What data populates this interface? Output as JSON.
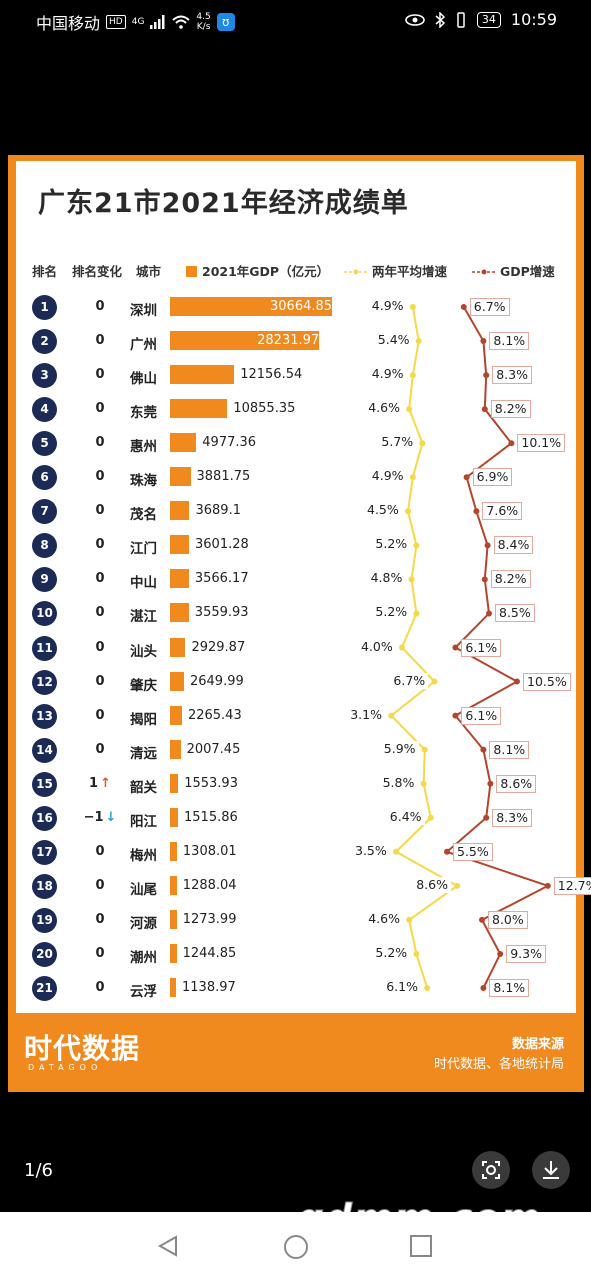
{
  "status_bar": {
    "carrier": "中国移动",
    "hd": "HD",
    "signal": "4G",
    "speed": "4.5",
    "speed_unit": "K/s",
    "battery": "34",
    "time": "10:59"
  },
  "chart": {
    "title": "广东21市2021年经济成绩单",
    "headers": {
      "rank": "排名",
      "change": "排名变化",
      "city": "城市",
      "gdp": "2021年GDP（亿元）",
      "avg_growth": "两年平均增速",
      "gdp_growth": "GDP增速"
    },
    "colors": {
      "bar": "#f08a1f",
      "avg_line": "#f5d94a",
      "gdp_line": "#b5442c",
      "rank_circle": "#1c2a56"
    },
    "rows": [
      {
        "rank": "1",
        "change": "0",
        "city": "深圳",
        "gdp": "30664.85",
        "avg": "4.9%",
        "growth": "6.7%"
      },
      {
        "rank": "2",
        "change": "0",
        "city": "广州",
        "gdp": "28231.97",
        "avg": "5.4%",
        "growth": "8.1%"
      },
      {
        "rank": "3",
        "change": "0",
        "city": "佛山",
        "gdp": "12156.54",
        "avg": "4.9%",
        "growth": "8.3%"
      },
      {
        "rank": "4",
        "change": "0",
        "city": "东莞",
        "gdp": "10855.35",
        "avg": "4.6%",
        "growth": "8.2%"
      },
      {
        "rank": "5",
        "change": "0",
        "city": "惠州",
        "gdp": "4977.36",
        "avg": "5.7%",
        "growth": "10.1%"
      },
      {
        "rank": "6",
        "change": "0",
        "city": "珠海",
        "gdp": "3881.75",
        "avg": "4.9%",
        "growth": "6.9%"
      },
      {
        "rank": "7",
        "change": "0",
        "city": "茂名",
        "gdp": "3689.1",
        "avg": "4.5%",
        "growth": "7.6%"
      },
      {
        "rank": "8",
        "change": "0",
        "city": "江门",
        "gdp": "3601.28",
        "avg": "5.2%",
        "growth": "8.4%"
      },
      {
        "rank": "9",
        "change": "0",
        "city": "中山",
        "gdp": "3566.17",
        "avg": "4.8%",
        "growth": "8.2%"
      },
      {
        "rank": "10",
        "change": "0",
        "city": "湛江",
        "gdp": "3559.93",
        "avg": "5.2%",
        "growth": "8.5%"
      },
      {
        "rank": "11",
        "change": "0",
        "city": "汕头",
        "gdp": "2929.87",
        "avg": "4.0%",
        "growth": "6.1%"
      },
      {
        "rank": "12",
        "change": "0",
        "city": "肇庆",
        "gdp": "2649.99",
        "avg": "6.7%",
        "growth": "10.5%"
      },
      {
        "rank": "13",
        "change": "0",
        "city": "揭阳",
        "gdp": "2265.43",
        "avg": "3.1%",
        "growth": "6.1%"
      },
      {
        "rank": "14",
        "change": "0",
        "city": "清远",
        "gdp": "2007.45",
        "avg": "5.9%",
        "growth": "8.1%"
      },
      {
        "rank": "15",
        "change": "1",
        "dir": "up",
        "city": "韶关",
        "gdp": "1553.93",
        "avg": "5.8%",
        "growth": "8.6%"
      },
      {
        "rank": "16",
        "change": "−1",
        "dir": "down",
        "city": "阳江",
        "gdp": "1515.86",
        "avg": "6.4%",
        "growth": "8.3%"
      },
      {
        "rank": "17",
        "change": "0",
        "city": "梅州",
        "gdp": "1308.01",
        "avg": "3.5%",
        "growth": "5.5%"
      },
      {
        "rank": "18",
        "change": "0",
        "city": "汕尾",
        "gdp": "1288.04",
        "avg": "8.6%",
        "growth": "12.7%"
      },
      {
        "rank": "19",
        "change": "0",
        "city": "河源",
        "gdp": "1273.99",
        "avg": "4.6%",
        "growth": "8.0%"
      },
      {
        "rank": "20",
        "change": "0",
        "city": "潮州",
        "gdp": "1244.85",
        "avg": "5.2%",
        "growth": "9.3%"
      },
      {
        "rank": "21",
        "change": "0",
        "city": "云浮",
        "gdp": "1138.97",
        "avg": "6.1%",
        "growth": "8.1%"
      }
    ],
    "footer": {
      "logo": "时代数据",
      "logo_sub": "DATAGOO",
      "source_title": "数据来源",
      "source": "时代数据、各地统计局"
    }
  },
  "viewer": {
    "page_indicator": "1/6",
    "watermark": "gdmm.com",
    "icons": [
      "scan-icon",
      "download-icon",
      "back-icon",
      "home-icon",
      "recent-icon"
    ]
  }
}
